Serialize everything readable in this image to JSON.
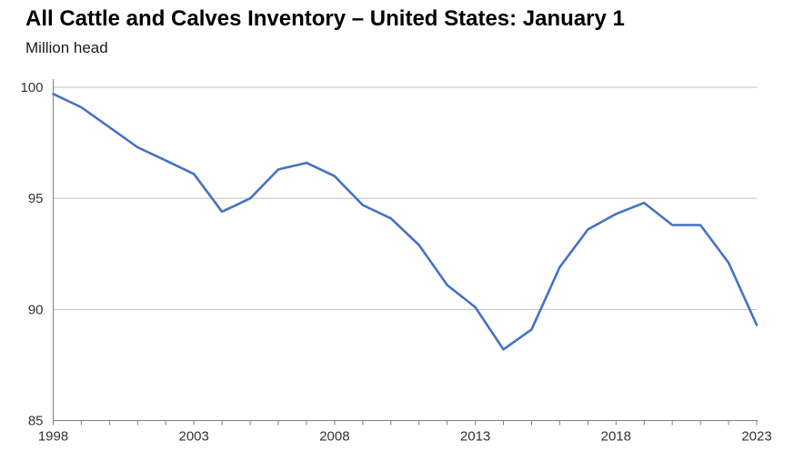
{
  "title": "All Cattle and Calves Inventory – United States: January 1",
  "subtitle": "Million head",
  "chart_data": {
    "type": "line",
    "title": "All Cattle and Calves Inventory – United States: January 1",
    "ylabel": "Million head",
    "xlabel": "",
    "x": [
      1998,
      1999,
      2000,
      2001,
      2002,
      2003,
      2004,
      2005,
      2006,
      2007,
      2008,
      2009,
      2010,
      2011,
      2012,
      2013,
      2014,
      2015,
      2016,
      2017,
      2018,
      2019,
      2020,
      2021,
      2022,
      2023
    ],
    "series": [
      {
        "name": "All cattle and calves inventory (million head)",
        "values": [
          99.7,
          99.1,
          98.2,
          97.3,
          96.7,
          96.1,
          94.4,
          95.0,
          96.3,
          96.6,
          96.0,
          94.7,
          94.1,
          92.9,
          91.1,
          90.1,
          88.2,
          89.1,
          91.9,
          93.6,
          94.3,
          94.8,
          93.8,
          93.8,
          92.1,
          89.3
        ]
      }
    ],
    "ylim": [
      85,
      100
    ],
    "xlim": [
      1998,
      2023
    ],
    "yticks": [
      85,
      90,
      95,
      100
    ],
    "xticks_labeled": [
      1998,
      2003,
      2008,
      2013,
      2018,
      2023
    ],
    "xticks_minor_every": 1,
    "grid": true,
    "legend_position": "none",
    "colors": {
      "line": "#4472C4",
      "gridline": "#BFBFBF",
      "axis": "#808080",
      "tick_label": "#333333",
      "title": "#000000",
      "background": "#FFFFFF"
    }
  }
}
